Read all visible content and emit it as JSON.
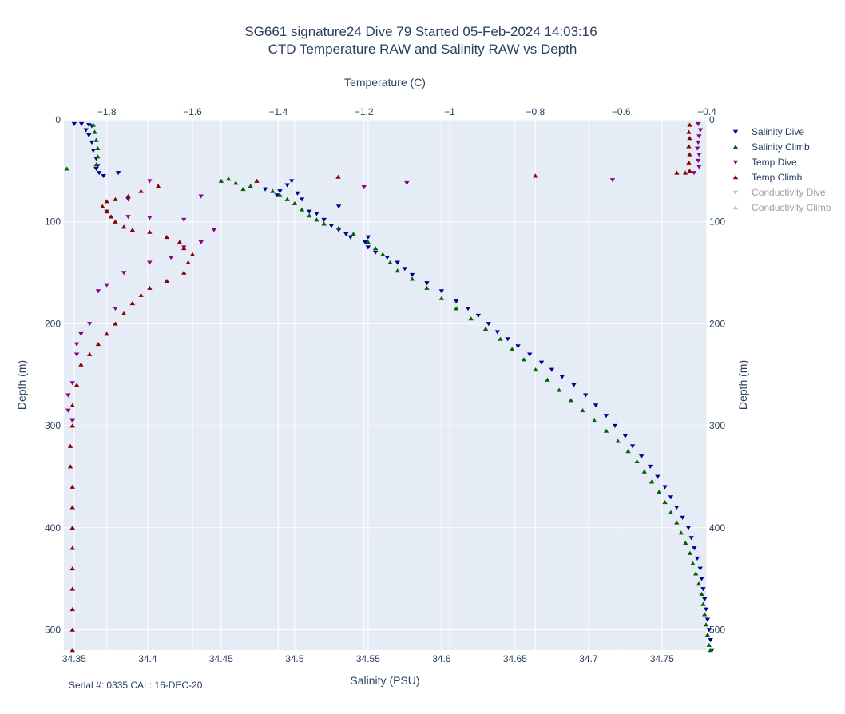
{
  "chart_data": {
    "type": "scatter",
    "title": "SG661 signature24 Dive 79 Started 05-Feb-2024 14:03:16",
    "subtitle": "CTD Temperature RAW and Salinity RAW vs Depth",
    "xlabel_bottom": "Salinity (PSU)",
    "xlabel_top": "Temperature (C)",
    "ylabel_left": "Depth (m)",
    "ylabel_right": "Depth (m)",
    "xlim_bottom": [
      34.343,
      34.7805
    ],
    "xlim_top": [
      -1.9,
      -0.4
    ],
    "ylim": [
      0,
      520
    ],
    "y_reversed": true,
    "x_ticks_bottom": [
      "34.35",
      "34.4",
      "34.45",
      "34.5",
      "34.55",
      "34.6",
      "34.65",
      "34.7",
      "34.75"
    ],
    "x_ticks_top": [
      "−1.8",
      "−1.6",
      "−1.4",
      "−1.2",
      "−1",
      "−0.8",
      "−0.6",
      "−0.4"
    ],
    "y_ticks_left": [
      "0",
      "100",
      "200",
      "300",
      "400",
      "500"
    ],
    "y_ticks_right": [
      "0",
      "100",
      "200",
      "300",
      "400",
      "500"
    ],
    "grid": true,
    "legend_position": "right",
    "series": [
      {
        "name": "Salinity Dive",
        "axis": "bottom",
        "marker": "triangle-down",
        "color": "#00008b",
        "visible": true,
        "points": [
          [
            34.35,
            4
          ],
          [
            34.362,
            6
          ],
          [
            34.358,
            10
          ],
          [
            34.36,
            15
          ],
          [
            34.362,
            22
          ],
          [
            34.363,
            30
          ],
          [
            34.365,
            38
          ],
          [
            34.366,
            45
          ],
          [
            34.367,
            52
          ],
          [
            34.36,
            5
          ],
          [
            34.355,
            4
          ],
          [
            34.365,
            48
          ],
          [
            34.38,
            52
          ],
          [
            34.37,
            55
          ],
          [
            34.48,
            68
          ],
          [
            34.495,
            64
          ],
          [
            34.49,
            70
          ],
          [
            34.488,
            74
          ],
          [
            34.498,
            60
          ],
          [
            34.502,
            72
          ],
          [
            34.505,
            78
          ],
          [
            34.51,
            90
          ],
          [
            34.515,
            92
          ],
          [
            34.52,
            98
          ],
          [
            34.525,
            104
          ],
          [
            34.53,
            108
          ],
          [
            34.535,
            112
          ],
          [
            34.538,
            115
          ],
          [
            34.548,
            120
          ],
          [
            34.55,
            125
          ],
          [
            34.555,
            130
          ],
          [
            34.563,
            135
          ],
          [
            34.57,
            140
          ],
          [
            34.575,
            146
          ],
          [
            34.58,
            152
          ],
          [
            34.59,
            160
          ],
          [
            34.6,
            168
          ],
          [
            34.61,
            178
          ],
          [
            34.618,
            185
          ],
          [
            34.625,
            192
          ],
          [
            34.632,
            200
          ],
          [
            34.638,
            208
          ],
          [
            34.645,
            215
          ],
          [
            34.652,
            222
          ],
          [
            34.66,
            230
          ],
          [
            34.668,
            238
          ],
          [
            34.675,
            245
          ],
          [
            34.682,
            252
          ],
          [
            34.69,
            260
          ],
          [
            34.698,
            270
          ],
          [
            34.705,
            280
          ],
          [
            34.712,
            290
          ],
          [
            34.718,
            300
          ],
          [
            34.725,
            310
          ],
          [
            34.73,
            320
          ],
          [
            34.736,
            330
          ],
          [
            34.742,
            340
          ],
          [
            34.747,
            350
          ],
          [
            34.752,
            360
          ],
          [
            34.756,
            370
          ],
          [
            34.76,
            380
          ],
          [
            34.764,
            390
          ],
          [
            34.768,
            400
          ],
          [
            34.77,
            410
          ],
          [
            34.772,
            420
          ],
          [
            34.774,
            430
          ],
          [
            34.776,
            440
          ],
          [
            34.777,
            450
          ],
          [
            34.778,
            460
          ],
          [
            34.779,
            470
          ],
          [
            34.78,
            480
          ],
          [
            34.781,
            490
          ],
          [
            34.782,
            500
          ],
          [
            34.783,
            510
          ],
          [
            34.784,
            520
          ],
          [
            34.53,
            85
          ],
          [
            34.55,
            115
          ]
        ]
      },
      {
        "name": "Salinity Climb",
        "axis": "bottom",
        "marker": "triangle-up",
        "color": "#006400",
        "visible": true,
        "points": [
          [
            34.345,
            48
          ],
          [
            34.363,
            5
          ],
          [
            34.364,
            12
          ],
          [
            34.365,
            20
          ],
          [
            34.366,
            28
          ],
          [
            34.366,
            36
          ],
          [
            34.365,
            44
          ],
          [
            34.45,
            60
          ],
          [
            34.455,
            58
          ],
          [
            34.46,
            62
          ],
          [
            34.465,
            68
          ],
          [
            34.47,
            65
          ],
          [
            34.485,
            70
          ],
          [
            34.49,
            74
          ],
          [
            34.495,
            78
          ],
          [
            34.5,
            82
          ],
          [
            34.505,
            88
          ],
          [
            34.51,
            94
          ],
          [
            34.515,
            98
          ],
          [
            34.52,
            102
          ],
          [
            34.53,
            106
          ],
          [
            34.54,
            112
          ],
          [
            34.55,
            120
          ],
          [
            34.555,
            126
          ],
          [
            34.56,
            132
          ],
          [
            34.565,
            140
          ],
          [
            34.57,
            148
          ],
          [
            34.58,
            156
          ],
          [
            34.59,
            165
          ],
          [
            34.6,
            175
          ],
          [
            34.61,
            185
          ],
          [
            34.62,
            195
          ],
          [
            34.63,
            205
          ],
          [
            34.64,
            215
          ],
          [
            34.648,
            225
          ],
          [
            34.656,
            235
          ],
          [
            34.664,
            245
          ],
          [
            34.672,
            255
          ],
          [
            34.68,
            265
          ],
          [
            34.688,
            275
          ],
          [
            34.696,
            285
          ],
          [
            34.704,
            295
          ],
          [
            34.712,
            305
          ],
          [
            34.72,
            315
          ],
          [
            34.727,
            325
          ],
          [
            34.733,
            335
          ],
          [
            34.738,
            345
          ],
          [
            34.743,
            355
          ],
          [
            34.748,
            365
          ],
          [
            34.752,
            375
          ],
          [
            34.756,
            385
          ],
          [
            34.76,
            395
          ],
          [
            34.763,
            405
          ],
          [
            34.766,
            415
          ],
          [
            34.769,
            425
          ],
          [
            34.771,
            435
          ],
          [
            34.773,
            445
          ],
          [
            34.775,
            455
          ],
          [
            34.777,
            465
          ],
          [
            34.778,
            475
          ],
          [
            34.779,
            485
          ],
          [
            34.78,
            495
          ],
          [
            34.781,
            505
          ],
          [
            34.782,
            515
          ],
          [
            34.783,
            520
          ]
        ]
      },
      {
        "name": "Temp Dive",
        "axis": "top",
        "marker": "triangle-down",
        "color": "#8b008b",
        "visible": true,
        "points": [
          [
            -0.42,
            4
          ],
          [
            -0.415,
            10
          ],
          [
            -0.418,
            16
          ],
          [
            -0.42,
            22
          ],
          [
            -0.422,
            28
          ],
          [
            -0.418,
            34
          ],
          [
            -0.42,
            40
          ],
          [
            -0.418,
            46
          ],
          [
            -0.43,
            52
          ],
          [
            -1.7,
            60
          ],
          [
            -1.1,
            62
          ],
          [
            -0.62,
            59
          ],
          [
            -1.2,
            66
          ],
          [
            -1.58,
            75
          ],
          [
            -1.75,
            78
          ],
          [
            -1.8,
            90
          ],
          [
            -1.75,
            95
          ],
          [
            -1.7,
            96
          ],
          [
            -1.62,
            98
          ],
          [
            -1.55,
            108
          ],
          [
            -1.58,
            120
          ],
          [
            -1.62,
            125
          ],
          [
            -1.65,
            135
          ],
          [
            -1.7,
            140
          ],
          [
            -1.76,
            150
          ],
          [
            -1.8,
            162
          ],
          [
            -1.82,
            168
          ],
          [
            -1.78,
            185
          ],
          [
            -1.84,
            200
          ],
          [
            -1.86,
            210
          ],
          [
            -1.87,
            220
          ],
          [
            -1.87,
            230
          ],
          [
            -1.88,
            258
          ],
          [
            -1.89,
            270
          ],
          [
            -1.89,
            285
          ],
          [
            -1.88,
            295
          ]
        ]
      },
      {
        "name": "Temp Climb",
        "axis": "top",
        "marker": "triangle-up",
        "color": "#8b0000",
        "visible": true,
        "points": [
          [
            -0.44,
            5
          ],
          [
            -0.442,
            12
          ],
          [
            -0.44,
            18
          ],
          [
            -0.442,
            26
          ],
          [
            -0.44,
            34
          ],
          [
            -0.442,
            42
          ],
          [
            -0.44,
            50
          ],
          [
            -0.45,
            52
          ],
          [
            -0.47,
            52
          ],
          [
            -0.8,
            55
          ],
          [
            -1.26,
            56
          ],
          [
            -1.45,
            60
          ],
          [
            -1.68,
            65
          ],
          [
            -1.72,
            70
          ],
          [
            -1.75,
            75
          ],
          [
            -1.78,
            78
          ],
          [
            -1.8,
            80
          ],
          [
            -1.81,
            85
          ],
          [
            -1.8,
            90
          ],
          [
            -1.79,
            95
          ],
          [
            -1.78,
            100
          ],
          [
            -1.76,
            105
          ],
          [
            -1.74,
            108
          ],
          [
            -1.7,
            110
          ],
          [
            -1.66,
            115
          ],
          [
            -1.63,
            120
          ],
          [
            -1.62,
            126
          ],
          [
            -1.6,
            132
          ],
          [
            -1.61,
            140
          ],
          [
            -1.62,
            150
          ],
          [
            -1.66,
            158
          ],
          [
            -1.7,
            165
          ],
          [
            -1.72,
            172
          ],
          [
            -1.74,
            180
          ],
          [
            -1.76,
            190
          ],
          [
            -1.78,
            200
          ],
          [
            -1.8,
            210
          ],
          [
            -1.82,
            220
          ],
          [
            -1.84,
            230
          ],
          [
            -1.86,
            240
          ],
          [
            -1.87,
            260
          ],
          [
            -1.88,
            280
          ],
          [
            -1.88,
            300
          ],
          [
            -1.885,
            320
          ],
          [
            -1.885,
            340
          ],
          [
            -1.88,
            360
          ],
          [
            -1.88,
            380
          ],
          [
            -1.88,
            400
          ],
          [
            -1.88,
            420
          ],
          [
            -1.88,
            440
          ],
          [
            -1.88,
            460
          ],
          [
            -1.88,
            480
          ],
          [
            -1.88,
            500
          ],
          [
            -1.88,
            520
          ]
        ]
      },
      {
        "name": "Conductivity Dive",
        "axis": "bottom",
        "marker": "triangle-down",
        "color": "#a0a0a0",
        "visible": false,
        "points": []
      },
      {
        "name": "Conductivity Climb",
        "axis": "bottom",
        "marker": "triangle-up",
        "color": "#a0a0a0",
        "visible": false,
        "points": []
      }
    ]
  },
  "footer_note": "Serial #: 0335  CAL: 16-DEC-20"
}
